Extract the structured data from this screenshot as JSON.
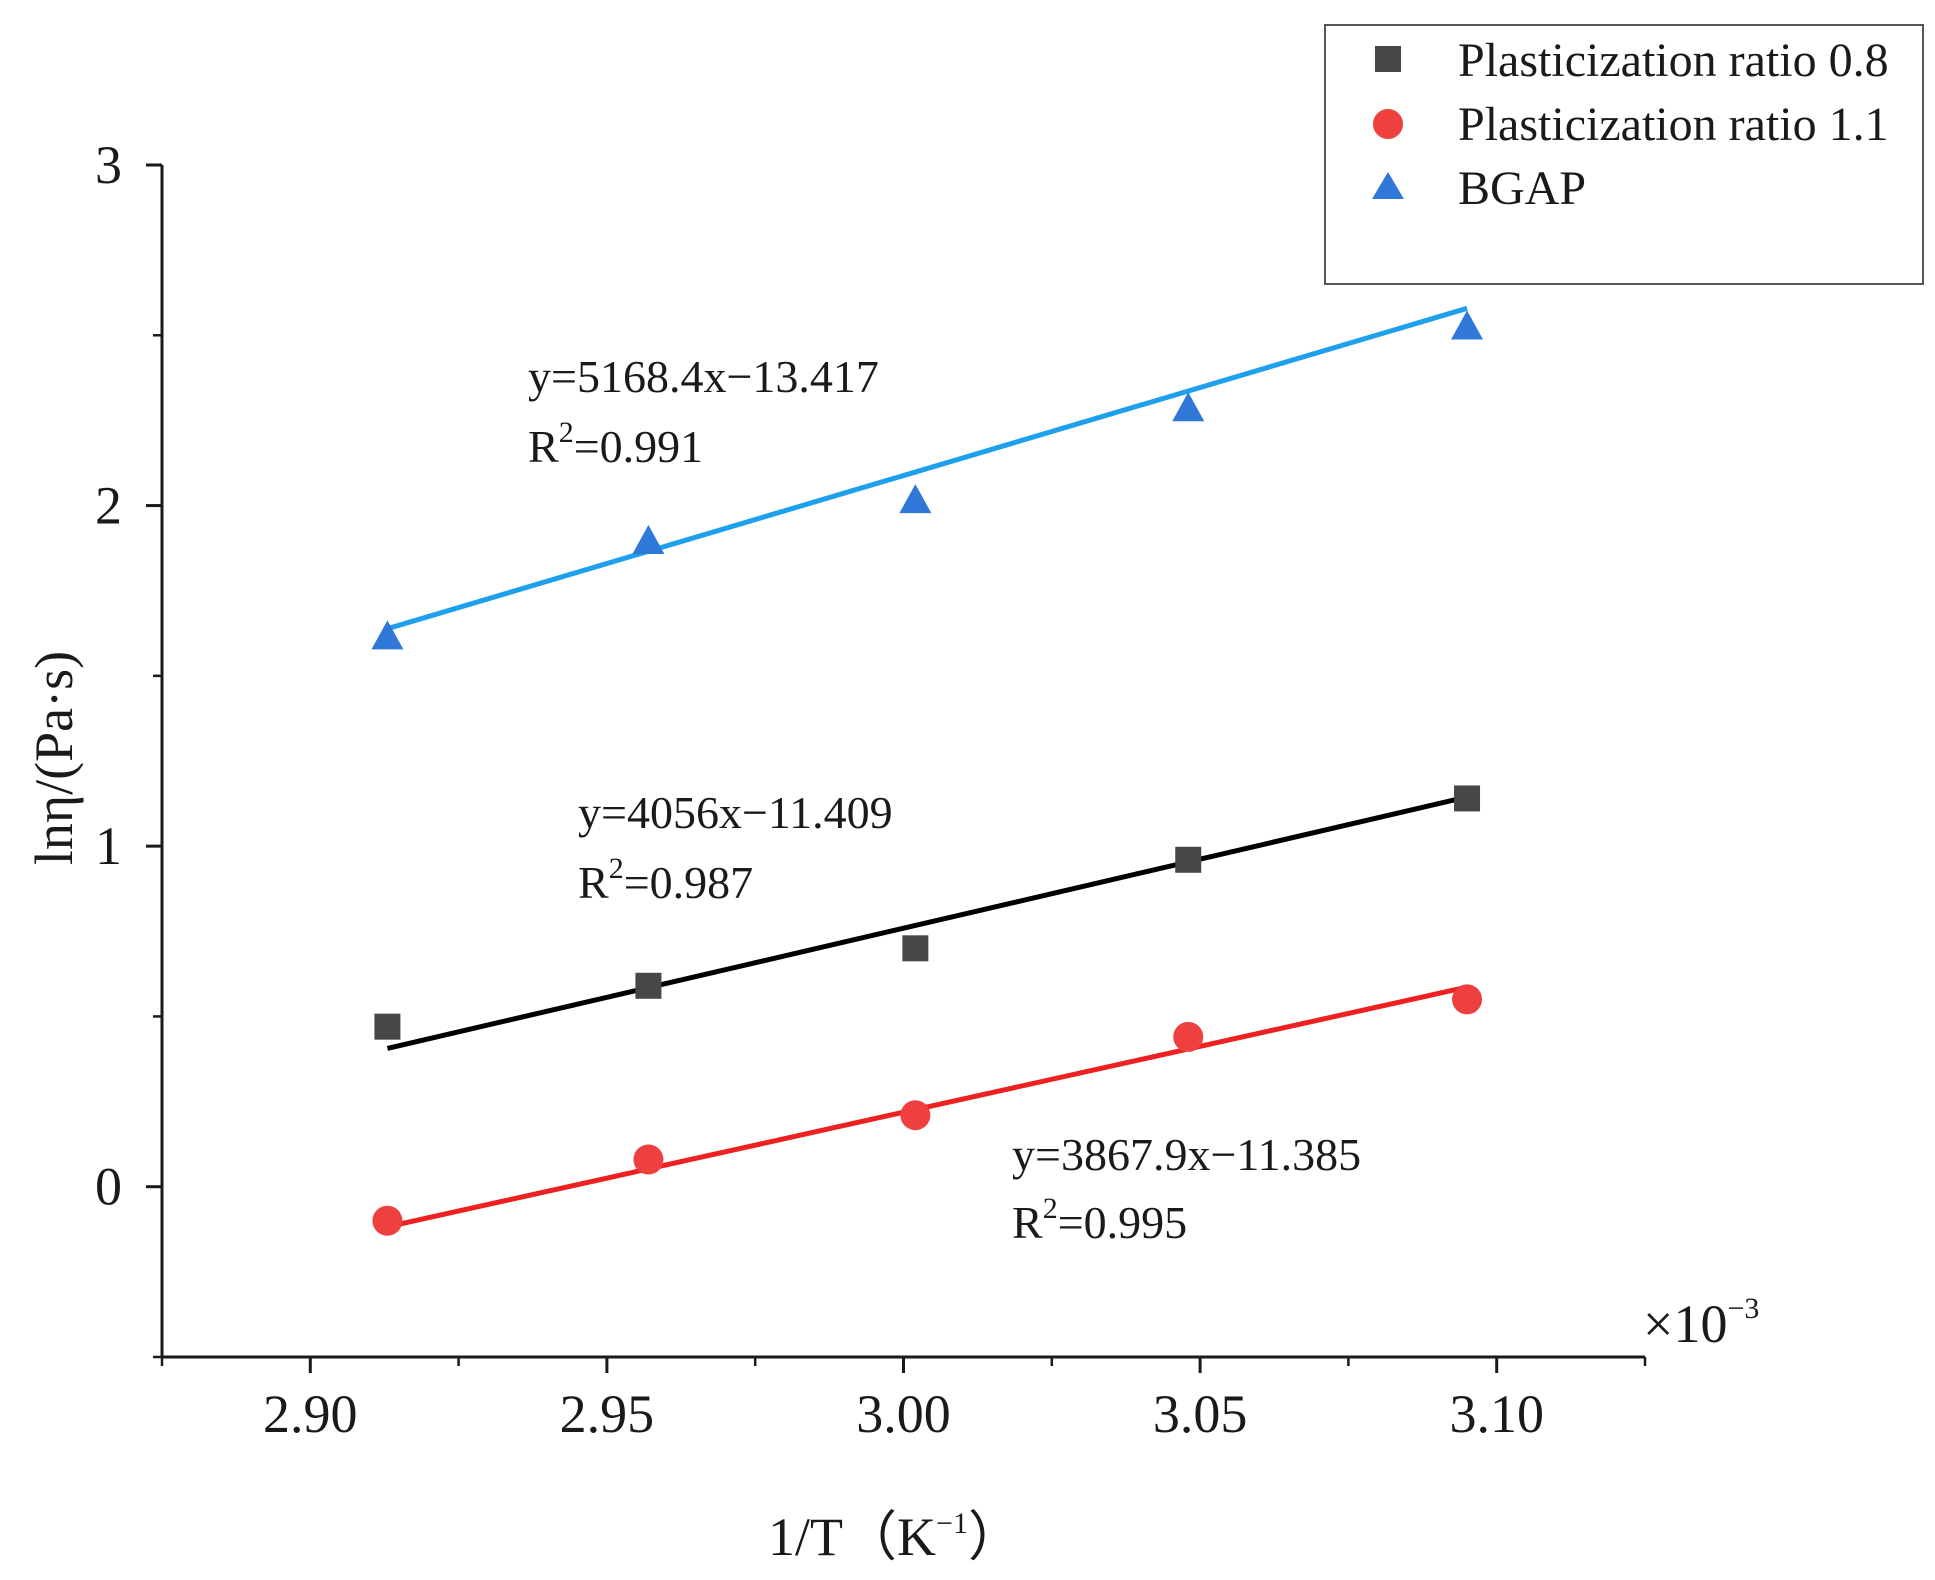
{
  "chart_data": {
    "type": "scatter",
    "xlabel": {
      "base": "1/T（K",
      "sup": "−1",
      "tail": "）"
    },
    "ylabel": "lnη/(Pa·s)",
    "x_multiplier": {
      "base": "×10",
      "sup": "−3"
    },
    "xlim": [
      2.875,
      3.125
    ],
    "ylim": [
      -0.5,
      3
    ],
    "x_ticks": [
      2.9,
      2.95,
      3.0,
      3.05,
      3.1
    ],
    "x_tick_labels": [
      "2.90",
      "2.95",
      "3.00",
      "3.05",
      "3.10"
    ],
    "x_minor_ticks": [
      2.875,
      2.925,
      2.975,
      3.025,
      3.075,
      3.125
    ],
    "y_ticks": [
      0,
      1,
      2,
      3
    ],
    "y_tick_labels": [
      "0",
      "1",
      "2",
      "3"
    ],
    "y_minor_ticks": [
      -0.5,
      0.5,
      1.5,
      2.5
    ],
    "legend_position": "top-right",
    "series": [
      {
        "name": "Plasticization ratio 0.8",
        "marker": "square",
        "color": "#474747",
        "line_color": "#000000",
        "x": [
          2.913,
          2.957,
          3.002,
          3.048,
          3.095
        ],
        "y": [
          0.47,
          0.59,
          0.7,
          0.96,
          1.14
        ],
        "fit": {
          "slope": 4056,
          "intercept": -11.409
        },
        "equation": "y=4056x−11.409",
        "r2_label": "R",
        "r2_sup": "2",
        "r2_value": "=0.987"
      },
      {
        "name": "Plasticization ratio 1.1",
        "marker": "circle",
        "color": "#ef4040",
        "line_color": "#ef2020",
        "x": [
          2.913,
          2.957,
          3.002,
          3.048,
          3.095
        ],
        "y": [
          -0.1,
          0.08,
          0.21,
          0.44,
          0.55
        ],
        "fit": {
          "slope": 3867.9,
          "intercept": -11.385
        },
        "equation": "y=3867.9x−11.385",
        "r2_label": "R",
        "r2_sup": "2",
        "r2_value": "=0.995"
      },
      {
        "name": "BGAP",
        "marker": "triangle",
        "color": "#2f78d8",
        "line_color": "#1ea0ec",
        "x": [
          2.913,
          2.957,
          3.002,
          3.048,
          3.095
        ],
        "y": [
          1.61,
          1.89,
          2.01,
          2.28,
          2.52
        ],
        "fit": {
          "slope": 5168.4,
          "intercept": -13.417
        },
        "equation": "y=5168.4x−13.417",
        "r2_label": "R",
        "r2_sup": "2",
        "r2_value": "=0.991"
      }
    ]
  }
}
